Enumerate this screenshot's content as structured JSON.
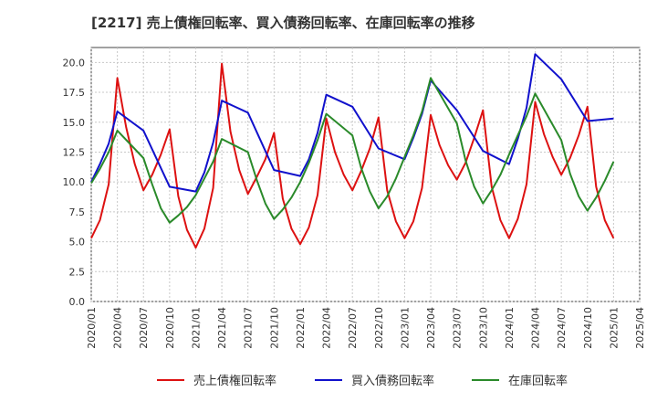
{
  "chart_data": {
    "type": "line",
    "title": "[2217]  売上債権回転率、買入債務回転率、在庫回転率の推移",
    "xlabel": "",
    "ylabel": "",
    "ylim": [
      0,
      21.25
    ],
    "yticks": [
      "0.0",
      "2.5",
      "5.0",
      "7.5",
      "10.0",
      "12.5",
      "15.0",
      "17.5",
      "20.0"
    ],
    "x_tick_labels": [
      "2020/01",
      "2020/04",
      "2020/07",
      "2020/10",
      "2021/01",
      "2021/04",
      "2021/07",
      "2021/10",
      "2022/01",
      "2022/04",
      "2022/07",
      "2022/10",
      "2023/01",
      "2023/04",
      "2023/07",
      "2023/10",
      "2024/01",
      "2024/04",
      "2024/07",
      "2024/10",
      "2025/01",
      "2025/04"
    ],
    "grid": true,
    "legend_position": "bottom",
    "series": [
      {
        "name": "売上債権回転率",
        "color": "#dd1111",
        "points": [
          [
            "2020/01",
            5.3
          ],
          [
            "2020/02",
            6.8
          ],
          [
            "2020/03",
            9.8
          ],
          [
            "2020/04",
            18.7
          ],
          [
            "2020/05",
            14.6
          ],
          [
            "2020/06",
            11.5
          ],
          [
            "2020/07",
            9.3
          ],
          [
            "2020/08",
            10.6
          ],
          [
            "2020/09",
            12.3
          ],
          [
            "2020/10",
            14.4
          ],
          [
            "2020/11",
            8.8
          ],
          [
            "2020/12",
            6.0
          ],
          [
            "2021/01",
            4.5
          ],
          [
            "2021/02",
            6.1
          ],
          [
            "2021/03",
            9.5
          ],
          [
            "2021/04",
            19.9
          ],
          [
            "2021/05",
            14.2
          ],
          [
            "2021/06",
            11.0
          ],
          [
            "2021/07",
            9.0
          ],
          [
            "2021/08",
            10.4
          ],
          [
            "2021/09",
            11.9
          ],
          [
            "2021/10",
            14.1
          ],
          [
            "2021/11",
            8.6
          ],
          [
            "2021/12",
            6.1
          ],
          [
            "2022/01",
            4.8
          ],
          [
            "2022/02",
            6.2
          ],
          [
            "2022/03",
            8.9
          ],
          [
            "2022/04",
            15.3
          ],
          [
            "2022/05",
            12.5
          ],
          [
            "2022/06",
            10.6
          ],
          [
            "2022/07",
            9.3
          ],
          [
            "2022/08",
            10.9
          ],
          [
            "2022/09",
            12.8
          ],
          [
            "2022/10",
            15.4
          ],
          [
            "2022/11",
            9.3
          ],
          [
            "2022/12",
            6.7
          ],
          [
            "2023/01",
            5.3
          ],
          [
            "2023/02",
            6.7
          ],
          [
            "2023/03",
            9.5
          ],
          [
            "2023/04",
            15.6
          ],
          [
            "2023/05",
            13.1
          ],
          [
            "2023/06",
            11.4
          ],
          [
            "2023/07",
            10.2
          ],
          [
            "2023/08",
            11.6
          ],
          [
            "2023/09",
            13.7
          ],
          [
            "2023/10",
            16.0
          ],
          [
            "2023/11",
            9.6
          ],
          [
            "2023/12",
            6.8
          ],
          [
            "2024/01",
            5.3
          ],
          [
            "2024/02",
            6.9
          ],
          [
            "2024/03",
            9.8
          ],
          [
            "2024/04",
            16.7
          ],
          [
            "2024/05",
            14.0
          ],
          [
            "2024/06",
            12.1
          ],
          [
            "2024/07",
            10.6
          ],
          [
            "2024/08",
            12.0
          ],
          [
            "2024/09",
            13.9
          ],
          [
            "2024/10",
            16.3
          ],
          [
            "2024/11",
            9.6
          ],
          [
            "2024/12",
            6.8
          ],
          [
            "2025/01",
            5.3
          ]
        ]
      },
      {
        "name": "買入債務回転率",
        "color": "#1111cc",
        "points": [
          [
            "2020/01",
            10.0
          ],
          [
            "2020/02",
            11.5
          ],
          [
            "2020/03",
            13.2
          ],
          [
            "2020/04",
            15.9
          ],
          [
            "2020/07",
            14.3
          ],
          [
            "2020/10",
            9.6
          ],
          [
            "2021/01",
            9.2
          ],
          [
            "2021/02",
            10.8
          ],
          [
            "2021/03",
            13.3
          ],
          [
            "2021/04",
            16.8
          ],
          [
            "2021/07",
            15.8
          ],
          [
            "2021/10",
            11.0
          ],
          [
            "2022/01",
            10.5
          ],
          [
            "2022/02",
            11.9
          ],
          [
            "2022/03",
            14.1
          ],
          [
            "2022/04",
            17.3
          ],
          [
            "2022/07",
            16.3
          ],
          [
            "2022/10",
            12.8
          ],
          [
            "2023/01",
            11.9
          ],
          [
            "2023/02",
            13.7
          ],
          [
            "2023/03",
            15.7
          ],
          [
            "2023/04",
            18.5
          ],
          [
            "2023/07",
            16.0
          ],
          [
            "2023/10",
            12.6
          ],
          [
            "2024/01",
            11.5
          ],
          [
            "2024/02",
            13.6
          ],
          [
            "2024/03",
            16.2
          ],
          [
            "2024/04",
            20.7
          ],
          [
            "2024/07",
            18.6
          ],
          [
            "2024/10",
            15.1
          ],
          [
            "2025/01",
            15.3
          ]
        ]
      },
      {
        "name": "在庫回転率",
        "color": "#2a8a2a",
        "points": [
          [
            "2020/01",
            9.9
          ],
          [
            "2020/02",
            11.1
          ],
          [
            "2020/03",
            12.5
          ],
          [
            "2020/04",
            14.3
          ],
          [
            "2020/07",
            12.0
          ],
          [
            "2020/08",
            9.8
          ],
          [
            "2020/09",
            7.8
          ],
          [
            "2020/10",
            6.6
          ],
          [
            "2020/11",
            7.2
          ],
          [
            "2020/12",
            7.9
          ],
          [
            "2021/01",
            8.9
          ],
          [
            "2021/02",
            10.3
          ],
          [
            "2021/03",
            11.7
          ],
          [
            "2021/04",
            13.6
          ],
          [
            "2021/07",
            12.5
          ],
          [
            "2021/08",
            10.2
          ],
          [
            "2021/09",
            8.2
          ],
          [
            "2021/10",
            6.9
          ],
          [
            "2021/11",
            7.7
          ],
          [
            "2021/12",
            8.7
          ],
          [
            "2022/01",
            10.0
          ],
          [
            "2022/02",
            11.6
          ],
          [
            "2022/03",
            13.5
          ],
          [
            "2022/04",
            15.7
          ],
          [
            "2022/07",
            13.9
          ],
          [
            "2022/08",
            11.2
          ],
          [
            "2022/09",
            9.2
          ],
          [
            "2022/10",
            7.8
          ],
          [
            "2022/11",
            8.8
          ],
          [
            "2022/12",
            10.3
          ],
          [
            "2023/01",
            12.1
          ],
          [
            "2023/02",
            13.9
          ],
          [
            "2023/03",
            15.9
          ],
          [
            "2023/04",
            18.7
          ],
          [
            "2023/07",
            14.9
          ],
          [
            "2023/08",
            11.8
          ],
          [
            "2023/09",
            9.6
          ],
          [
            "2023/10",
            8.2
          ],
          [
            "2023/11",
            9.3
          ],
          [
            "2023/12",
            10.6
          ],
          [
            "2024/01",
            12.3
          ],
          [
            "2024/02",
            13.9
          ],
          [
            "2024/03",
            15.5
          ],
          [
            "2024/04",
            17.4
          ],
          [
            "2024/07",
            13.5
          ],
          [
            "2024/08",
            10.7
          ],
          [
            "2024/09",
            8.8
          ],
          [
            "2024/10",
            7.6
          ],
          [
            "2024/11",
            8.7
          ],
          [
            "2024/12",
            10.1
          ],
          [
            "2025/01",
            11.7
          ]
        ]
      }
    ]
  }
}
